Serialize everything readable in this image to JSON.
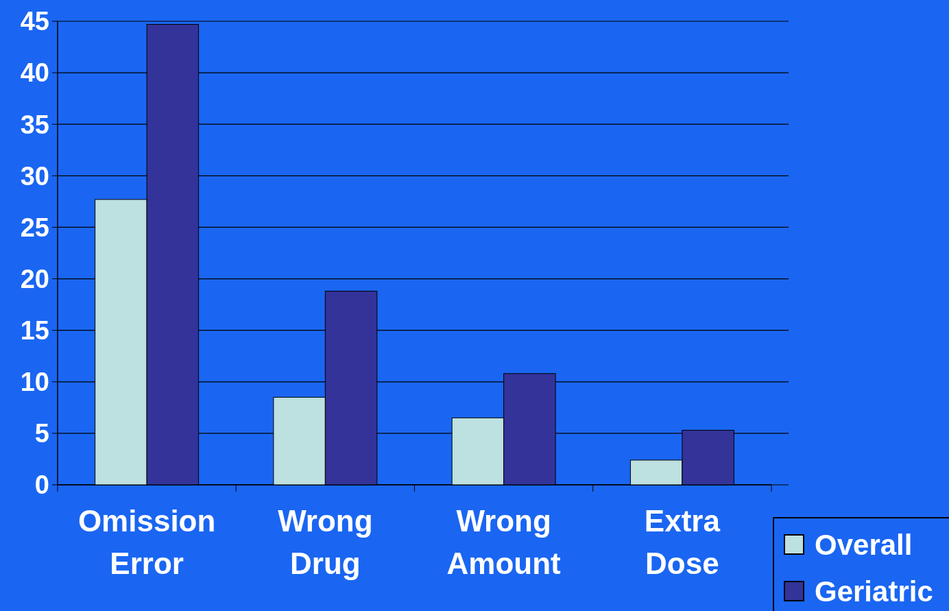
{
  "chart_data": {
    "type": "bar",
    "categories": [
      "Omission Error",
      "Wrong Drug",
      "Wrong Amount",
      "Extra Dose"
    ],
    "series": [
      {
        "name": "Overall",
        "color": "#bde0e0",
        "values": [
          27.7,
          8.5,
          6.5,
          2.4
        ]
      },
      {
        "name": "Geriatric",
        "color": "#333399",
        "values": [
          44.7,
          18.8,
          10.8,
          5.3
        ]
      }
    ],
    "ylim": [
      0,
      45
    ],
    "yticks": [
      0,
      5,
      10,
      15,
      20,
      25,
      30,
      35,
      40,
      45
    ],
    "grid": "y",
    "legend": "bottom right"
  }
}
